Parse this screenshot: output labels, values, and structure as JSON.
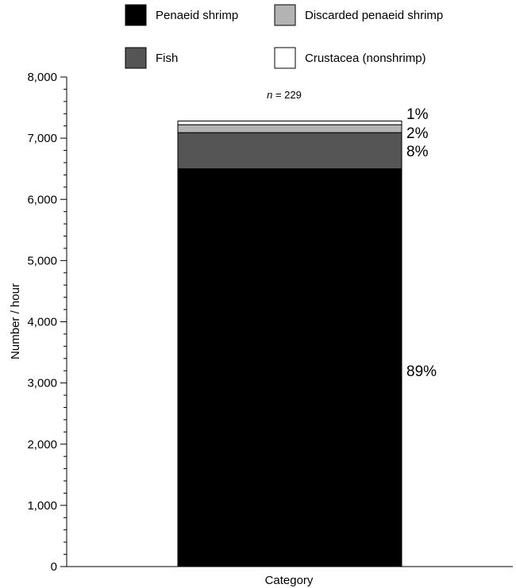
{
  "chart_data": {
    "type": "bar",
    "stacked": true,
    "categories": [
      ""
    ],
    "xlabel": "Category",
    "ylabel": "Number / hour",
    "ylim": [
      0,
      8000
    ],
    "yticks": [
      0,
      1000,
      2000,
      3000,
      4000,
      5000,
      6000,
      7000,
      8000
    ],
    "ytick_labels": [
      "0",
      "1,000",
      "2,000",
      "3,000",
      "4,000",
      "5,000",
      "6,000",
      "7,000",
      "8,000"
    ],
    "annotation": "n = 229",
    "annotation_italic": "n",
    "annotation_rest": " = 229",
    "grid": false,
    "legend_placement": "top",
    "series": [
      {
        "name": "Penaeid shrimp",
        "values": [
          6500
        ],
        "color": "#000000",
        "percent_label": "89%"
      },
      {
        "name": "Fish",
        "values": [
          590
        ],
        "color": "#555555",
        "percent_label": "8%"
      },
      {
        "name": "Discarded penaeid shrimp",
        "values": [
          130
        ],
        "color": "#b3b3b3",
        "percent_label": "2%"
      },
      {
        "name": "Crustacea (nonshrimp)",
        "values": [
          60
        ],
        "color": "#ffffff",
        "percent_label": "1%"
      }
    ],
    "legend_order": [
      "Penaeid shrimp",
      "Discarded penaeid shrimp",
      "Fish",
      "Crustacea (nonshrimp)"
    ]
  }
}
